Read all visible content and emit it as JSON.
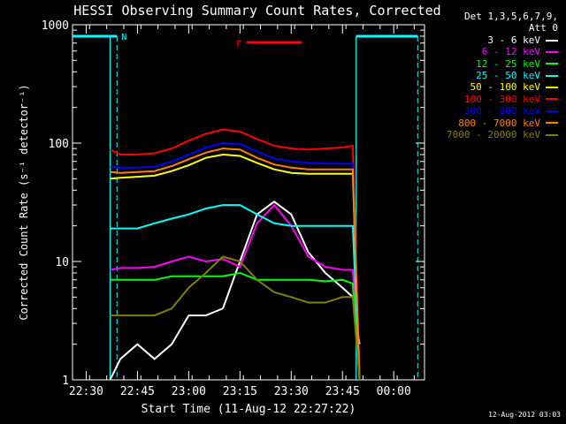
{
  "chart_data": {
    "type": "line",
    "title": "HESSI Observing Summary Count Rates, Corrected",
    "xlabel": "Start Time (11-Aug-12 22:27:22)",
    "ylabel": "Corrected Count Rate (s⁻¹ detector⁻¹)",
    "yscale": "log",
    "ylim": [
      1,
      1000
    ],
    "y_ticks": [
      "1",
      "10",
      "100",
      "1000"
    ],
    "x_ticks": [
      "22:30",
      "22:45",
      "23:00",
      "23:15",
      "23:30",
      "23:45",
      "00:00"
    ],
    "legend_header": [
      "Det 1,3,5,6,7,9,",
      "Att 0"
    ],
    "annotations": [
      {
        "text": "N",
        "color": "#00ffff",
        "note": "night intervals"
      },
      {
        "text": "F",
        "color": "#ff0000",
        "note": "flare flag"
      }
    ],
    "series": [
      {
        "name": "3 - 6 keV",
        "color": "#ffffff",
        "points": [
          [
            "22:37",
            1
          ],
          [
            "22:40",
            1.5
          ],
          [
            "22:45",
            2
          ],
          [
            "22:50",
            1.5
          ],
          [
            "22:55",
            2
          ],
          [
            "23:00",
            3.5
          ],
          [
            "23:05",
            3.5
          ],
          [
            "23:10",
            4
          ],
          [
            "23:15",
            10
          ],
          [
            "23:20",
            25
          ],
          [
            "23:25",
            32
          ],
          [
            "23:30",
            25
          ],
          [
            "23:35",
            12
          ],
          [
            "23:40",
            8
          ],
          [
            "23:45",
            6
          ],
          [
            "23:48",
            5
          ],
          [
            "23:50",
            2
          ]
        ]
      },
      {
        "name": "6 - 12 keV",
        "color": "#ff00ff",
        "points": [
          [
            "22:37",
            8.5
          ],
          [
            "22:40",
            8.8
          ],
          [
            "22:45",
            8.8
          ],
          [
            "22:50",
            9
          ],
          [
            "22:55",
            10
          ],
          [
            "23:00",
            11
          ],
          [
            "23:05",
            10
          ],
          [
            "23:10",
            10.5
          ],
          [
            "23:15",
            9
          ],
          [
            "23:20",
            21
          ],
          [
            "23:25",
            30
          ],
          [
            "23:30",
            20
          ],
          [
            "23:35",
            11
          ],
          [
            "23:40",
            9
          ],
          [
            "23:45",
            8.5
          ],
          [
            "23:48",
            8.5
          ],
          [
            "23:50",
            1
          ]
        ]
      },
      {
        "name": "12 - 25 keV",
        "color": "#00ff00",
        "points": [
          [
            "22:37",
            7
          ],
          [
            "22:40",
            7
          ],
          [
            "22:45",
            7
          ],
          [
            "22:50",
            7
          ],
          [
            "22:55",
            7.5
          ],
          [
            "23:00",
            7.5
          ],
          [
            "23:05",
            7.5
          ],
          [
            "23:10",
            7.5
          ],
          [
            "23:15",
            8
          ],
          [
            "23:20",
            7
          ],
          [
            "23:25",
            7
          ],
          [
            "23:30",
            7
          ],
          [
            "23:35",
            7
          ],
          [
            "23:40",
            6.8
          ],
          [
            "23:45",
            7
          ],
          [
            "23:48",
            6.5
          ],
          [
            "23:50",
            1
          ]
        ]
      },
      {
        "name": "25 - 50 keV",
        "color": "#00ffff",
        "points": [
          [
            "22:37",
            19
          ],
          [
            "22:40",
            19
          ],
          [
            "22:45",
            19
          ],
          [
            "22:50",
            21
          ],
          [
            "22:55",
            23
          ],
          [
            "23:00",
            25
          ],
          [
            "23:05",
            28
          ],
          [
            "23:10",
            30
          ],
          [
            "23:15",
            30
          ],
          [
            "23:20",
            25
          ],
          [
            "23:25",
            21
          ],
          [
            "23:30",
            20
          ],
          [
            "23:35",
            20
          ],
          [
            "23:40",
            20
          ],
          [
            "23:45",
            20
          ],
          [
            "23:48",
            20
          ],
          [
            "23:50",
            1
          ]
        ]
      },
      {
        "name": "50 - 100 keV",
        "color": "#ffff00",
        "points": [
          [
            "22:37",
            50
          ],
          [
            "22:40",
            51
          ],
          [
            "22:45",
            52
          ],
          [
            "22:50",
            53
          ],
          [
            "22:55",
            58
          ],
          [
            "23:00",
            65
          ],
          [
            "23:05",
            75
          ],
          [
            "23:10",
            80
          ],
          [
            "23:15",
            78
          ],
          [
            "23:20",
            68
          ],
          [
            "23:25",
            60
          ],
          [
            "23:30",
            56
          ],
          [
            "23:35",
            55
          ],
          [
            "23:40",
            55
          ],
          [
            "23:45",
            55
          ],
          [
            "23:48",
            55
          ],
          [
            "23:50",
            1
          ]
        ]
      },
      {
        "name": "100 - 300 keV",
        "color": "#ff0000",
        "points": [
          [
            "22:37",
            88
          ],
          [
            "22:40",
            80
          ],
          [
            "22:45",
            80
          ],
          [
            "22:50",
            82
          ],
          [
            "22:55",
            90
          ],
          [
            "23:00",
            105
          ],
          [
            "23:05",
            120
          ],
          [
            "23:10",
            130
          ],
          [
            "23:15",
            125
          ],
          [
            "23:20",
            108
          ],
          [
            "23:25",
            95
          ],
          [
            "23:30",
            90
          ],
          [
            "23:35",
            88
          ],
          [
            "23:40",
            90
          ],
          [
            "23:45",
            92
          ],
          [
            "23:48",
            95
          ],
          [
            "23:50",
            1
          ]
        ]
      },
      {
        "name": "300 - 800 keV",
        "color": "#0000ff",
        "points": [
          [
            "22:37",
            63
          ],
          [
            "22:40",
            62
          ],
          [
            "22:45",
            62
          ],
          [
            "22:50",
            63
          ],
          [
            "22:55",
            70
          ],
          [
            "23:00",
            80
          ],
          [
            "23:05",
            92
          ],
          [
            "23:10",
            100
          ],
          [
            "23:15",
            98
          ],
          [
            "23:20",
            85
          ],
          [
            "23:25",
            74
          ],
          [
            "23:30",
            70
          ],
          [
            "23:35",
            68
          ],
          [
            "23:40",
            67
          ],
          [
            "23:45",
            67
          ],
          [
            "23:48",
            67
          ],
          [
            "23:50",
            1
          ]
        ]
      },
      {
        "name": "800 - 7000 keV",
        "color": "#ff8000",
        "points": [
          [
            "22:37",
            57
          ],
          [
            "22:40",
            56
          ],
          [
            "22:45",
            57
          ],
          [
            "22:50",
            58
          ],
          [
            "22:55",
            64
          ],
          [
            "23:00",
            73
          ],
          [
            "23:05",
            83
          ],
          [
            "23:10",
            90
          ],
          [
            "23:15",
            88
          ],
          [
            "23:20",
            75
          ],
          [
            "23:25",
            66
          ],
          [
            "23:30",
            62
          ],
          [
            "23:35",
            60
          ],
          [
            "23:40",
            60
          ],
          [
            "23:45",
            60
          ],
          [
            "23:48",
            60
          ],
          [
            "23:50",
            1
          ]
        ]
      },
      {
        "name": "7000 - 20000 keV",
        "color": "#808000",
        "points": [
          [
            "22:37",
            3.5
          ],
          [
            "22:40",
            3.5
          ],
          [
            "22:45",
            3.5
          ],
          [
            "22:50",
            3.5
          ],
          [
            "22:55",
            4
          ],
          [
            "23:00",
            6
          ],
          [
            "23:05",
            8
          ],
          [
            "23:10",
            11
          ],
          [
            "23:15",
            10
          ],
          [
            "23:20",
            7
          ],
          [
            "23:25",
            5.5
          ],
          [
            "23:30",
            5
          ],
          [
            "23:35",
            4.5
          ],
          [
            "23:40",
            4.5
          ],
          [
            "23:45",
            5
          ],
          [
            "23:48",
            5
          ],
          [
            "23:50",
            1
          ]
        ]
      }
    ]
  },
  "timestamp": "12-Aug-2012 03:03"
}
